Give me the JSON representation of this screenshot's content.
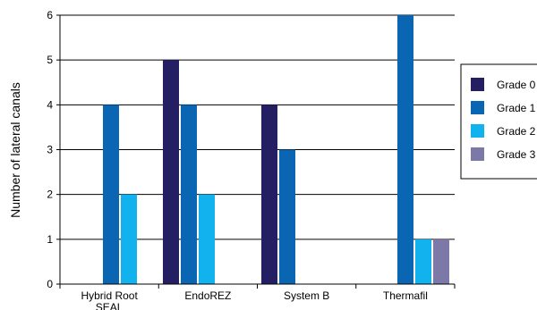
{
  "chart_data": {
    "type": "bar",
    "title": "",
    "xlabel": "",
    "ylabel": "Number of lateral canals",
    "ylim": [
      0,
      6
    ],
    "yticks": [
      0,
      1,
      2,
      3,
      4,
      5,
      6
    ],
    "grid": "horizontal",
    "legend_position": "right",
    "categories": [
      "Hybrid Root SEAL",
      "EndoREZ",
      "System B",
      "Thermafil"
    ],
    "series": [
      {
        "name": "Grade 0",
        "color": "#241f62",
        "values": [
          0,
          5,
          4,
          0
        ]
      },
      {
        "name": "Grade 1",
        "color": "#0a66b2",
        "values": [
          4,
          4,
          3,
          6
        ]
      },
      {
        "name": "Grade 2",
        "color": "#12b2ee",
        "values": [
          2,
          2,
          0,
          1
        ]
      },
      {
        "name": "Grade 3",
        "color": "#7c79a8",
        "values": [
          0,
          0,
          0,
          1
        ]
      }
    ]
  }
}
